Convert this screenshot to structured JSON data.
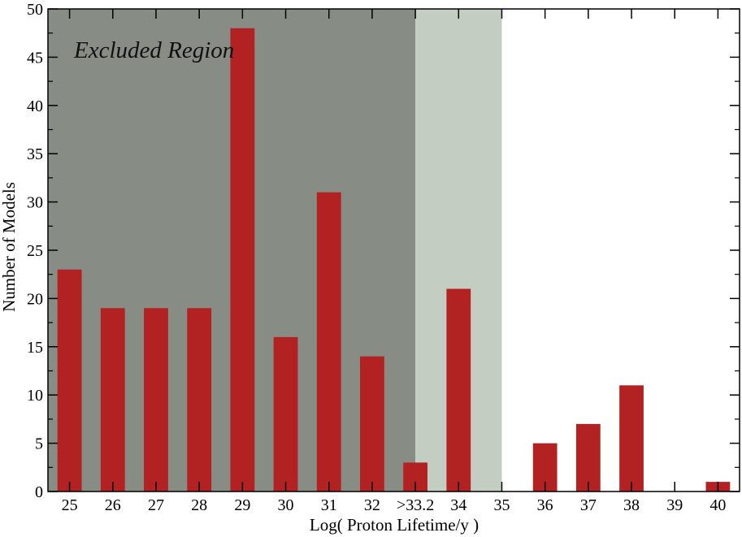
{
  "chart_data": {
    "type": "bar",
    "xlabel": "Log( Proton Lifetime/y )",
    "ylabel": "Number of Models",
    "ylim": [
      0,
      50
    ],
    "yticks": [
      "0",
      "5",
      "10",
      "15",
      "20",
      "25",
      "30",
      "35",
      "40",
      "45",
      "50"
    ],
    "categories": [
      "25",
      "26",
      "27",
      "28",
      "29",
      "30",
      "31",
      "32",
      ">33.2",
      "34",
      "35",
      "36",
      "37",
      "38",
      "39",
      "40"
    ],
    "values": [
      23,
      19,
      19,
      19,
      48,
      16,
      31,
      14,
      3,
      21,
      0,
      5,
      7,
      11,
      0,
      1
    ],
    "grid": false,
    "annotations": [
      {
        "text": "Excluded Region",
        "style": "italic",
        "placement": "top-left inside dark shaded region"
      }
    ],
    "shaded_regions": [
      {
        "name": "excluded",
        "from_category": "25",
        "to_category": ">33.2",
        "color": "#878c84"
      },
      {
        "name": "light",
        "from_category": ">33.2",
        "to_category": "35",
        "color": "#c3cdc1"
      }
    ],
    "colors": {
      "bar": "#b22222",
      "excluded_region": "#878c84",
      "light_region": "#c3cdc1",
      "axis": "#000000"
    }
  }
}
